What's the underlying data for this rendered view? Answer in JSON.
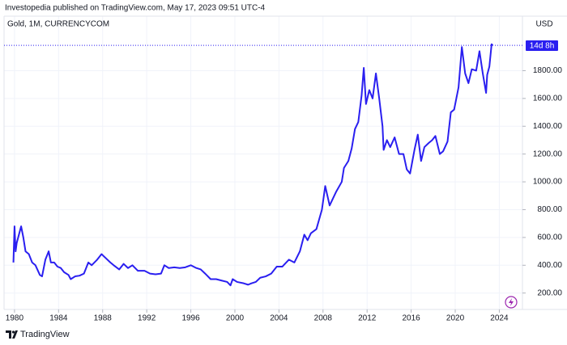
{
  "header": "Investopedia published on TradingView.com, May 17, 2023 09:51 UTC-4",
  "footer": "TradingView",
  "price_axis_unit": "USD",
  "countdown": "14d 8h",
  "chart_data": {
    "type": "line",
    "x": [
      1979.9,
      1980.0,
      1980.1,
      1980.2,
      1980.4,
      1980.6,
      1980.8,
      1981.0,
      1981.3,
      1981.6,
      1981.9,
      1982.3,
      1982.5,
      1982.8,
      1983.1,
      1983.3,
      1983.6,
      1983.9,
      1984.2,
      1984.5,
      1984.9,
      1985.1,
      1985.5,
      1985.9,
      1986.3,
      1986.7,
      1987.0,
      1987.5,
      1987.9,
      1988.3,
      1988.7,
      1989.0,
      1989.5,
      1989.9,
      1990.3,
      1990.7,
      1991.2,
      1991.8,
      1992.3,
      1992.8,
      1993.3,
      1993.6,
      1994.0,
      1994.5,
      1995.0,
      1995.5,
      1996.0,
      1996.5,
      1996.9,
      1997.3,
      1997.8,
      1998.3,
      1998.8,
      1999.3,
      1999.6,
      1999.8,
      2000.2,
      2000.8,
      2001.2,
      2001.5,
      2001.9,
      2002.3,
      2002.8,
      2003.3,
      2003.8,
      2004.3,
      2004.9,
      2005.4,
      2005.9,
      2006.3,
      2006.6,
      2006.9,
      2007.4,
      2007.9,
      2008.2,
      2008.6,
      2008.9,
      2009.2,
      2009.7,
      2009.9,
      2010.3,
      2010.6,
      2010.9,
      2011.2,
      2011.5,
      2011.7,
      2011.9,
      2012.2,
      2012.5,
      2012.8,
      2013.1,
      2013.4,
      2013.5,
      2013.8,
      2014.1,
      2014.5,
      2014.9,
      2015.3,
      2015.6,
      2015.9,
      2016.3,
      2016.6,
      2016.9,
      2017.2,
      2017.6,
      2017.9,
      2018.2,
      2018.6,
      2018.9,
      2019.3,
      2019.6,
      2019.9,
      2020.3,
      2020.6,
      2020.9,
      2021.2,
      2021.5,
      2021.9,
      2022.2,
      2022.5,
      2022.8,
      2022.9,
      2023.1,
      2023.3,
      2023.4
    ],
    "series": [
      {
        "name": "Gold, 1M, CURRENCYCOM",
        "color": "#2a1ff0",
        "values": [
          420,
          680,
          500,
          560,
          620,
          680,
          600,
          500,
          480,
          420,
          400,
          330,
          320,
          440,
          500,
          420,
          420,
          390,
          380,
          350,
          330,
          300,
          320,
          325,
          340,
          420,
          400,
          440,
          480,
          450,
          420,
          400,
          370,
          410,
          380,
          400,
          360,
          360,
          340,
          335,
          340,
          400,
          380,
          385,
          380,
          385,
          400,
          380,
          370,
          340,
          300,
          300,
          290,
          280,
          255,
          300,
          280,
          270,
          260,
          270,
          280,
          310,
          320,
          340,
          390,
          390,
          440,
          420,
          500,
          620,
          580,
          630,
          660,
          800,
          970,
          830,
          880,
          930,
          1000,
          1100,
          1150,
          1240,
          1380,
          1430,
          1620,
          1820,
          1560,
          1660,
          1600,
          1780,
          1600,
          1400,
          1230,
          1300,
          1250,
          1320,
          1200,
          1200,
          1090,
          1060,
          1230,
          1340,
          1150,
          1250,
          1280,
          1300,
          1330,
          1200,
          1220,
          1290,
          1500,
          1520,
          1680,
          1970,
          1780,
          1710,
          1810,
          1800,
          1940,
          1780,
          1640,
          1770,
          1830,
          1990,
          1982
        ]
      }
    ],
    "xlim": [
      1979.05,
      2026.1
    ],
    "ylim": [
      82,
      2192
    ],
    "xticks": [
      1980,
      1984,
      1988,
      1992,
      1996,
      2000,
      2004,
      2008,
      2012,
      2016,
      2020,
      2024
    ],
    "yticks": [
      {
        "value": 200,
        "label": "200.00"
      },
      {
        "value": 400,
        "label": "400.00"
      },
      {
        "value": 600,
        "label": "600.00"
      },
      {
        "value": 800,
        "label": "800.00"
      },
      {
        "value": 1000,
        "label": "1000.00"
      },
      {
        "value": 1200,
        "label": "1200.00"
      },
      {
        "value": 1400,
        "label": "1400.00"
      },
      {
        "value": 1600,
        "label": "1600.00"
      },
      {
        "value": 1800,
        "label": "1800.00"
      }
    ],
    "grid": true
  }
}
